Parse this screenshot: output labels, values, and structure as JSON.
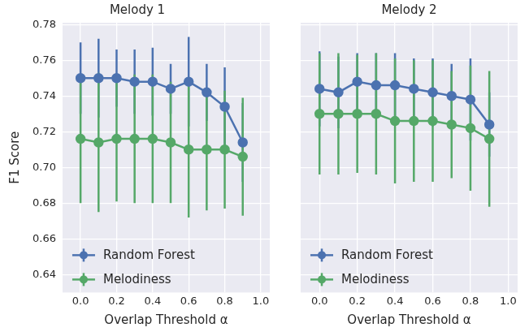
{
  "chart_data": [
    {
      "type": "line",
      "title": "Melody 1",
      "x_label": "Overlap Threshold α",
      "y_label": "F1 Score",
      "x": [
        0.0,
        0.1,
        0.2,
        0.3,
        0.4,
        0.5,
        0.6,
        0.7,
        0.8,
        0.9
      ],
      "xlim": [
        -0.1,
        1.05
      ],
      "xticks": [
        {
          "value": 0,
          "label": "0.0"
        },
        {
          "value": 0.2,
          "label": "0.2"
        },
        {
          "value": 0.4,
          "label": "0.4"
        },
        {
          "value": 0.6,
          "label": "0.6"
        },
        {
          "value": 0.8,
          "label": "0.8"
        },
        {
          "value": 1,
          "label": "1.0"
        }
      ],
      "ylim": [
        0.63,
        0.781
      ],
      "yticks": [
        0.64,
        0.66,
        0.68,
        {
          "value": 0.7,
          "label": "0.70"
        },
        0.72,
        0.74,
        0.76,
        0.78
      ],
      "grid": true,
      "legend": "lower left",
      "tick_labels": true,
      "series": [
        {
          "name": "Random Forest",
          "color": "#4c72b0",
          "marker": "circle",
          "line_style": "solid",
          "values": [
            0.75,
            0.75,
            0.75,
            0.748,
            0.748,
            0.744,
            0.748,
            0.742,
            0.734,
            0.714
          ],
          "errors": [
            0.02,
            0.022,
            0.016,
            0.018,
            0.019,
            0.014,
            0.025,
            0.016,
            0.022,
            0.022
          ]
        },
        {
          "name": "Melodiness",
          "color": "#55a868",
          "marker": "circle",
          "line_style": "solid",
          "values": [
            0.716,
            0.714,
            0.716,
            0.716,
            0.716,
            0.714,
            0.71,
            0.71,
            0.71,
            0.706
          ],
          "errors": [
            0.036,
            0.039,
            0.035,
            0.036,
            0.036,
            0.034,
            0.038,
            0.034,
            0.033,
            0.033
          ]
        }
      ]
    },
    {
      "type": "line",
      "title": "Melody 2",
      "x_label": "Overlap Threshold α",
      "x": [
        0.0,
        0.1,
        0.2,
        0.3,
        0.4,
        0.5,
        0.6,
        0.7,
        0.8,
        0.9
      ],
      "xlim": [
        -0.1,
        1.05
      ],
      "xticks": [
        {
          "value": 0,
          "label": "0.0"
        },
        {
          "value": 0.2,
          "label": "0.2"
        },
        {
          "value": 0.4,
          "label": "0.4"
        },
        {
          "value": 0.6,
          "label": "0.6"
        },
        {
          "value": 0.8,
          "label": "0.8"
        },
        {
          "value": 1,
          "label": "1.0"
        }
      ],
      "ylim": [
        0.63,
        0.781
      ],
      "yticks": [
        0.64,
        0.66,
        0.68,
        {
          "value": 0.7,
          "label": "0.70"
        },
        0.72,
        0.74,
        0.76,
        0.78
      ],
      "grid": true,
      "legend": "lower left",
      "tick_labels": "x",
      "series": [
        {
          "name": "Random Forest",
          "color": "#4c72b0",
          "marker": "circle",
          "line_style": "solid",
          "values": [
            0.744,
            0.742,
            0.748,
            0.746,
            0.746,
            0.744,
            0.742,
            0.74,
            0.738,
            0.724
          ],
          "errors": [
            0.021,
            0.02,
            0.016,
            0.018,
            0.018,
            0.017,
            0.019,
            0.018,
            0.023,
            0.018
          ]
        },
        {
          "name": "Melodiness",
          "color": "#55a868",
          "marker": "circle",
          "line_style": "solid",
          "values": [
            0.73,
            0.73,
            0.73,
            0.73,
            0.726,
            0.726,
            0.726,
            0.724,
            0.722,
            0.716
          ],
          "errors": [
            0.034,
            0.034,
            0.033,
            0.034,
            0.035,
            0.034,
            0.034,
            0.03,
            0.035,
            0.038
          ]
        }
      ]
    }
  ]
}
